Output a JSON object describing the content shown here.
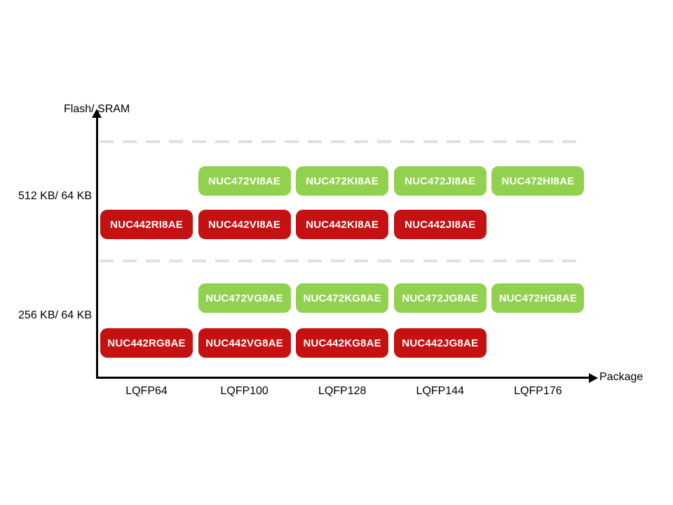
{
  "colors": {
    "green_box": "#92d050",
    "red_box": "#c41112",
    "dashed_gridline": "#e0e0e0",
    "axis": "#000000",
    "box_text": "#ffffff",
    "background": "#ffffff"
  },
  "chart_data": {
    "type": "table",
    "title": "",
    "xlabel": "Package",
    "ylabel": "Flash/ SRAM",
    "columns": [
      "LQFP64",
      "LQFP100",
      "LQFP128",
      "LQFP144",
      "LQFP176"
    ],
    "y_categories": [
      "512 KB/ 64 KB",
      "256 KB/ 64 KB"
    ],
    "legend_position": "none",
    "grid": "two dashed horizontal gridlines",
    "rows": [
      {
        "family": "NUC472",
        "memory": "512 KB/ 64 KB",
        "color": "#92d050",
        "parts": [
          null,
          "NUC472VI8AE",
          "NUC472KI8AE",
          "NUC472JI8AE",
          "NUC472HI8AE"
        ]
      },
      {
        "family": "NUC442",
        "memory": "512 KB/ 64 KB",
        "color": "#c41112",
        "parts": [
          "NUC442RI8AE",
          "NUC442VI8AE",
          "NUC442KI8AE",
          "NUC442JI8AE",
          null
        ]
      },
      {
        "family": "NUC472",
        "memory": "256 KB/ 64 KB",
        "color": "#92d050",
        "parts": [
          null,
          "NUC472VG8AE",
          "NUC472KG8AE",
          "NUC472JG8AE",
          "NUC472HG8AE"
        ]
      },
      {
        "family": "NUC442",
        "memory": "256 KB/ 64 KB",
        "color": "#c41112",
        "parts": [
          "NUC442RG8AE",
          "NUC442VG8AE",
          "NUC442KG8AE",
          "NUC442JG8AE",
          null
        ]
      }
    ]
  }
}
